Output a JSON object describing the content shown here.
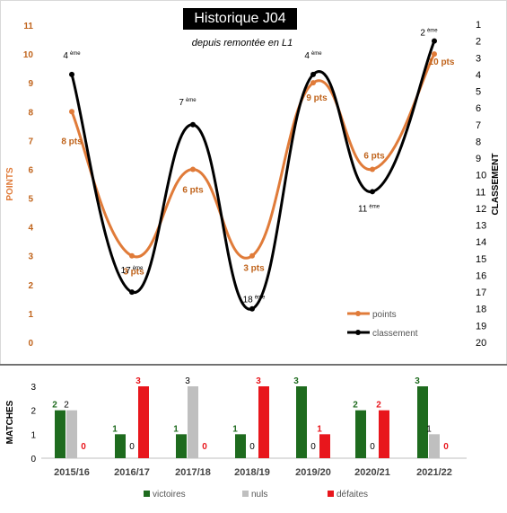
{
  "chart_data": [
    {
      "type": "line",
      "title": "Historique J04",
      "subtitle": "depuis remontée en L1",
      "categories": [
        "2015/16",
        "2016/17",
        "2017/18",
        "2018/19",
        "2019/20",
        "2020/21",
        "2021/22"
      ],
      "ylabel": "POINTS",
      "y2label": "CLASSEMENT",
      "ylim": [
        0,
        11
      ],
      "y2lim": [
        1,
        20
      ],
      "y2_inverted": true,
      "y_ticks": [
        "0",
        "1",
        "2",
        "3",
        "4",
        "5",
        "6",
        "7",
        "8",
        "9",
        "10",
        "11"
      ],
      "y2_ticks": [
        "1",
        "2",
        "3",
        "4",
        "5",
        "6",
        "7",
        "8",
        "9",
        "10",
        "11",
        "12",
        "13",
        "14",
        "15",
        "16",
        "17",
        "18",
        "19",
        "20"
      ],
      "series": [
        {
          "name": "points",
          "axis": "left",
          "color": "#e07b39",
          "values": [
            8,
            3,
            6,
            3,
            9,
            6,
            10
          ],
          "labels": [
            "8 pts",
            "3 pts",
            "6 pts",
            "3 pts",
            "9 pts",
            "6 pts",
            "10 pts"
          ]
        },
        {
          "name": "classement",
          "axis": "right",
          "color": "#000000",
          "values": [
            4,
            17,
            7,
            18,
            4,
            11,
            2
          ],
          "labels": [
            "4",
            "17",
            "7",
            "18",
            "4",
            "11",
            "2"
          ],
          "label_suffix": "ème"
        }
      ],
      "legend": "bottom-right",
      "grid": false
    },
    {
      "type": "bar",
      "ylabel": "MATCHES",
      "ylim": [
        0,
        3
      ],
      "y_ticks": [
        "0",
        "1",
        "2",
        "3"
      ],
      "categories": [
        "2015/16",
        "2016/17",
        "2017/18",
        "2018/19",
        "2019/20",
        "2020/21",
        "2021/22"
      ],
      "series": [
        {
          "name": "victoires",
          "color": "#1e6b1e",
          "values": [
            2,
            1,
            1,
            1,
            3,
            2,
            3
          ]
        },
        {
          "name": "nuls",
          "color": "#bfbfbf",
          "values": [
            2,
            0,
            3,
            0,
            0,
            0,
            1
          ]
        },
        {
          "name": "défaites",
          "color": "#e8161c",
          "values": [
            0,
            3,
            0,
            3,
            1,
            2,
            0
          ]
        }
      ],
      "legend": "bottom"
    }
  ]
}
